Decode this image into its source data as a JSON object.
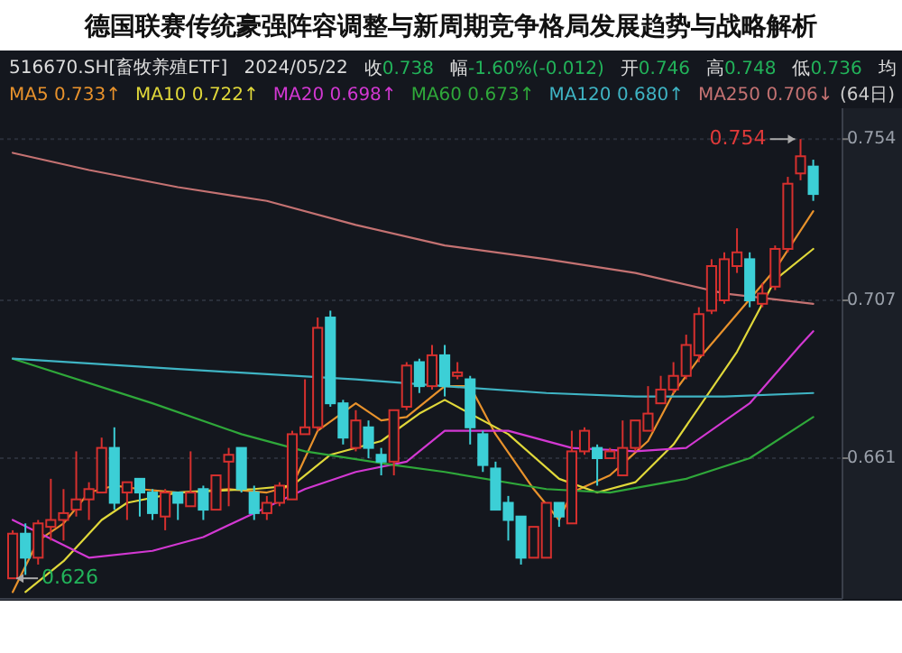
{
  "chart_data": {
    "type": "candlestick",
    "title": "德国联赛传统豪强阵容调整与新周期竞争格局发展趋势与战略解析",
    "annotations": [
      "516670.SH[畜牧养殖ETF]",
      "2024/05/22",
      "收0.738",
      "幅-1.60%(-0.012)",
      "开0.746",
      "高0.748",
      "低0.736",
      "均",
      "(64日)",
      "0.754",
      "0.626"
    ],
    "categories": [
      null,
      null,
      null,
      null,
      null,
      null,
      null,
      null,
      null,
      null,
      null,
      null,
      null,
      null,
      null,
      null,
      null,
      null,
      null,
      null,
      null,
      null,
      null,
      null,
      null,
      null,
      null,
      null,
      null,
      null,
      null,
      null,
      null,
      null,
      null,
      null,
      null,
      null,
      null,
      null,
      null,
      null,
      null,
      null,
      null,
      null,
      null,
      null,
      null,
      null,
      null,
      null,
      null,
      null,
      null,
      null,
      null,
      null,
      null,
      null,
      null,
      null,
      null,
      null
    ],
    "ohlc": [
      [
        0.626,
        0.64,
        0.626,
        0.639
      ],
      [
        0.639,
        0.642,
        0.627,
        0.632
      ],
      [
        0.632,
        0.643,
        0.63,
        0.642
      ],
      [
        0.641,
        0.655,
        0.637,
        0.643
      ],
      [
        0.643,
        0.652,
        0.637,
        0.645
      ],
      [
        0.646,
        0.663,
        0.644,
        0.649
      ],
      [
        0.649,
        0.654,
        0.643,
        0.652
      ],
      [
        0.651,
        0.667,
        0.651,
        0.664
      ],
      [
        0.664,
        0.67,
        0.646,
        0.648
      ],
      [
        0.651,
        0.654,
        0.643,
        0.654
      ],
      [
        0.655,
        0.655,
        0.644,
        0.651
      ],
      [
        0.651,
        0.652,
        0.643,
        0.645
      ],
      [
        0.644,
        0.652,
        0.64,
        0.651
      ],
      [
        0.651,
        0.651,
        0.643,
        0.648
      ],
      [
        0.647,
        0.663,
        0.647,
        0.651
      ],
      [
        0.652,
        0.653,
        0.643,
        0.646
      ],
      [
        0.646,
        0.656,
        0.646,
        0.656
      ],
      [
        0.66,
        0.664,
        0.647,
        0.662
      ],
      [
        0.664,
        0.664,
        0.651,
        0.652
      ],
      [
        0.651,
        0.653,
        0.643,
        0.645
      ],
      [
        0.645,
        0.65,
        0.643,
        0.648
      ],
      [
        0.648,
        0.654,
        0.647,
        0.653
      ],
      [
        0.649,
        0.669,
        0.649,
        0.668
      ],
      [
        0.668,
        0.684,
        0.668,
        0.67
      ],
      [
        0.67,
        0.702,
        0.669,
        0.699
      ],
      [
        0.702,
        0.704,
        0.676,
        0.677
      ],
      [
        0.677,
        0.678,
        0.665,
        0.667
      ],
      [
        0.664,
        0.675,
        0.663,
        0.672
      ],
      [
        0.67,
        0.672,
        0.661,
        0.664
      ],
      [
        0.662,
        0.664,
        0.656,
        0.66
      ],
      [
        0.66,
        0.675,
        0.656,
        0.675
      ],
      [
        0.676,
        0.689,
        0.675,
        0.688
      ],
      [
        0.689,
        0.69,
        0.68,
        0.682
      ],
      [
        0.682,
        0.694,
        0.681,
        0.691
      ],
      [
        0.691,
        0.694,
        0.679,
        0.682
      ],
      [
        0.685,
        0.689,
        0.684,
        0.686
      ],
      [
        0.684,
        0.685,
        0.665,
        0.67
      ],
      [
        0.668,
        0.669,
        0.657,
        0.659
      ],
      [
        0.658,
        0.66,
        0.646,
        0.646
      ],
      [
        0.648,
        0.65,
        0.637,
        0.643
      ],
      [
        0.644,
        0.644,
        0.63,
        0.632
      ],
      [
        0.632,
        0.641,
        0.632,
        0.641
      ],
      [
        0.632,
        0.648,
        0.632,
        0.648
      ],
      [
        0.648,
        0.648,
        0.641,
        0.644
      ],
      [
        0.642,
        0.669,
        0.642,
        0.663
      ],
      [
        0.663,
        0.67,
        0.662,
        0.669
      ],
      [
        0.664,
        0.665,
        0.653,
        0.661
      ],
      [
        0.661,
        0.664,
        0.661,
        0.663
      ],
      [
        0.656,
        0.672,
        0.656,
        0.664
      ],
      [
        0.664,
        0.672,
        0.663,
        0.672
      ],
      [
        0.669,
        0.682,
        0.669,
        0.674
      ],
      [
        0.677,
        0.685,
        0.677,
        0.681
      ],
      [
        0.681,
        0.689,
        0.68,
        0.685
      ],
      [
        0.685,
        0.697,
        0.684,
        0.694
      ],
      [
        0.691,
        0.705,
        0.689,
        0.703
      ],
      [
        0.704,
        0.719,
        0.703,
        0.717
      ],
      [
        0.707,
        0.721,
        0.706,
        0.719
      ],
      [
        0.717,
        0.728,
        0.715,
        0.721
      ],
      [
        0.719,
        0.721,
        0.705,
        0.707
      ],
      [
        0.706,
        0.712,
        0.705,
        0.709
      ],
      [
        0.711,
        0.723,
        0.71,
        0.722
      ],
      [
        0.722,
        0.743,
        0.721,
        0.741
      ],
      [
        0.744,
        0.754,
        0.742,
        0.749
      ],
      [
        0.746,
        0.748,
        0.736,
        0.738
      ]
    ],
    "series": [
      {
        "type": "line",
        "name": "MA5 0.733↑",
        "color": "#e8922c",
        "values": [
          0.622,
          null,
          0.637,
          null,
          0.642,
          null,
          0.651,
          null,
          0.653,
          null,
          0.652,
          null,
          null,
          0.651,
          null,
          null,
          null,
          0.652,
          null,
          null,
          0.651,
          null,
          0.653,
          null,
          0.669,
          null,
          null,
          0.677,
          null,
          0.672,
          null,
          0.673,
          null,
          null,
          0.682,
          null,
          0.682,
          null,
          0.668,
          null,
          null,
          0.652,
          null,
          0.643,
          0.651,
          null,
          null,
          0.656,
          null,
          null,
          0.666,
          null,
          0.68,
          null,
          0.69,
          null,
          null,
          null,
          null,
          null,
          0.716,
          null,
          null,
          0.733
        ]
      },
      {
        "type": "line",
        "name": "MA10 0.722↑",
        "color": "#e0d83a",
        "values": [
          null,
          0.622,
          null,
          null,
          0.631,
          null,
          null,
          0.643,
          null,
          0.648,
          null,
          null,
          null,
          0.651,
          null,
          null,
          null,
          null,
          null,
          0.652,
          null,
          null,
          0.653,
          null,
          null,
          0.662,
          null,
          null,
          null,
          0.666,
          null,
          null,
          0.674,
          null,
          0.678,
          null,
          null,
          null,
          null,
          0.668,
          null,
          null,
          null,
          0.655,
          null,
          null,
          0.651,
          null,
          null,
          0.654,
          null,
          null,
          0.665,
          null,
          null,
          null,
          null,
          0.692,
          null,
          null,
          0.713,
          null,
          null,
          0.722
        ]
      },
      {
        "type": "line",
        "name": "MA20 0.698↑",
        "color": "#d238d2",
        "values": [
          0.643,
          null,
          null,
          null,
          null,
          null,
          0.632,
          null,
          null,
          null,
          null,
          0.634,
          null,
          null,
          null,
          0.638,
          null,
          null,
          null,
          0.645,
          null,
          null,
          null,
          0.652,
          null,
          null,
          null,
          0.657,
          null,
          null,
          null,
          0.66,
          null,
          null,
          0.669,
          null,
          null,
          null,
          null,
          0.669,
          null,
          null,
          null,
          null,
          0.664,
          null,
          null,
          null,
          null,
          0.663,
          null,
          null,
          null,
          0.664,
          null,
          null,
          null,
          null,
          0.677,
          null,
          null,
          null,
          0.694,
          0.698
        ]
      },
      {
        "type": "line",
        "name": "MA60 0.673↑",
        "color": "#2fa83a",
        "values": [
          0.69,
          null,
          null,
          null,
          null,
          null,
          null,
          null,
          null,
          null,
          null,
          0.677,
          null,
          null,
          null,
          null,
          null,
          null,
          0.668,
          null,
          null,
          null,
          null,
          0.663,
          null,
          null,
          null,
          null,
          null,
          null,
          0.659,
          null,
          null,
          null,
          0.657,
          null,
          null,
          null,
          null,
          null,
          null,
          null,
          0.652,
          null,
          null,
          null,
          null,
          0.651,
          null,
          null,
          null,
          null,
          null,
          0.655,
          null,
          null,
          null,
          null,
          0.661,
          null,
          null,
          null,
          null,
          0.673
        ]
      },
      {
        "type": "line",
        "name": "MA120 0.680↑",
        "color": "#3fb4c4",
        "values": [
          0.69,
          null,
          null,
          null,
          null,
          null,
          null,
          null,
          null,
          null,
          null,
          null,
          null,
          0.687,
          null,
          null,
          null,
          null,
          null,
          null,
          null,
          null,
          null,
          null,
          null,
          null,
          null,
          0.684,
          null,
          null,
          null,
          null,
          null,
          null,
          0.682,
          null,
          null,
          null,
          null,
          null,
          null,
          null,
          0.68,
          null,
          null,
          null,
          null,
          null,
          null,
          0.679,
          null,
          null,
          null,
          null,
          null,
          null,
          0.679,
          null,
          null,
          null,
          null,
          null,
          null,
          0.68
        ]
      },
      {
        "type": "line",
        "name": "MA250 0.706↓",
        "color": "#c47272",
        "values": [
          0.75,
          null,
          null,
          null,
          null,
          null,
          0.745,
          null,
          null,
          null,
          null,
          null,
          null,
          0.74,
          null,
          null,
          null,
          null,
          null,
          null,
          0.736,
          null,
          null,
          null,
          null,
          null,
          null,
          0.729,
          null,
          null,
          null,
          null,
          null,
          null,
          0.723,
          null,
          null,
          null,
          null,
          null,
          null,
          null,
          0.719,
          null,
          null,
          null,
          null,
          null,
          null,
          0.715,
          null,
          null,
          null,
          null,
          null,
          null,
          0.709,
          null,
          null,
          null,
          null,
          null,
          null,
          0.706
        ]
      }
    ],
    "ylim": [
      0.62,
      0.763
    ],
    "yticks": [
      0.754,
      0.707,
      0.661
    ],
    "grid": "y",
    "legend": "top left",
    "tick_labels": "y"
  }
}
